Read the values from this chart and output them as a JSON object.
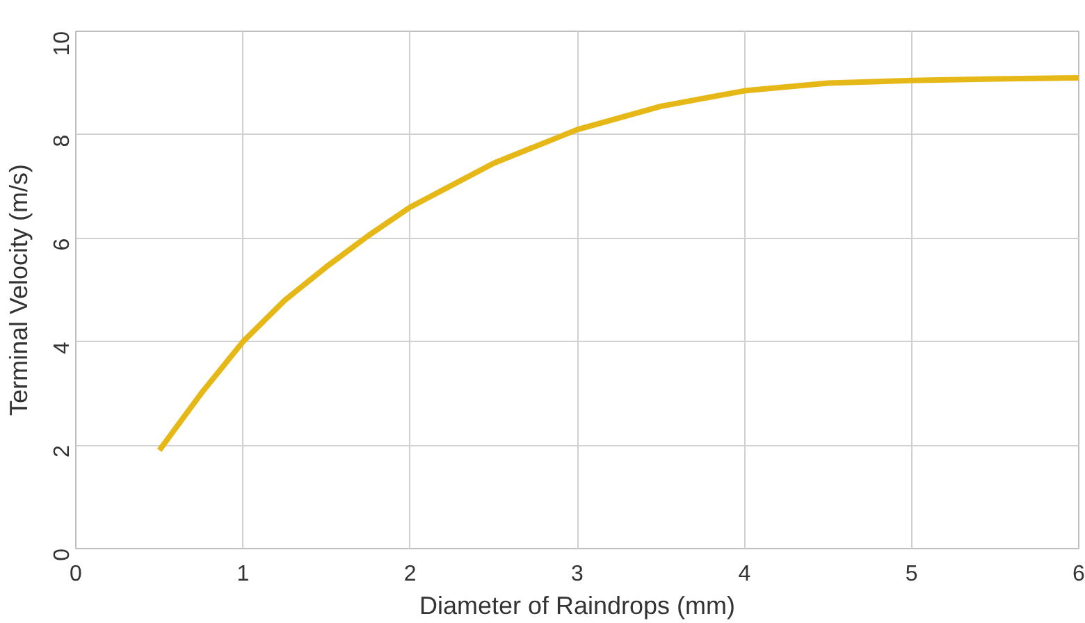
{
  "chart_data": {
    "type": "line",
    "xlabel": "Diameter of Raindrops (mm)",
    "ylabel": "Terminal Velocity (m/s)",
    "x": [
      0.5,
      0.75,
      1,
      1.25,
      1.5,
      1.75,
      2,
      2.5,
      3,
      3.5,
      4,
      4.5,
      5,
      5.5,
      6
    ],
    "series": [
      {
        "color": "#e6b817",
        "values": [
          1.9,
          3.0,
          4.0,
          4.8,
          5.45,
          6.05,
          6.6,
          7.45,
          8.1,
          8.55,
          8.85,
          9.0,
          9.05,
          9.08,
          9.1
        ]
      }
    ],
    "xlim": [
      0,
      6
    ],
    "ylim": [
      0,
      10
    ],
    "xticks": [
      0,
      1,
      2,
      3,
      4,
      5,
      6
    ],
    "yticks": [
      0,
      2,
      4,
      6,
      8,
      10
    ],
    "grid": true,
    "marker": "none",
    "line_style": "solid"
  }
}
